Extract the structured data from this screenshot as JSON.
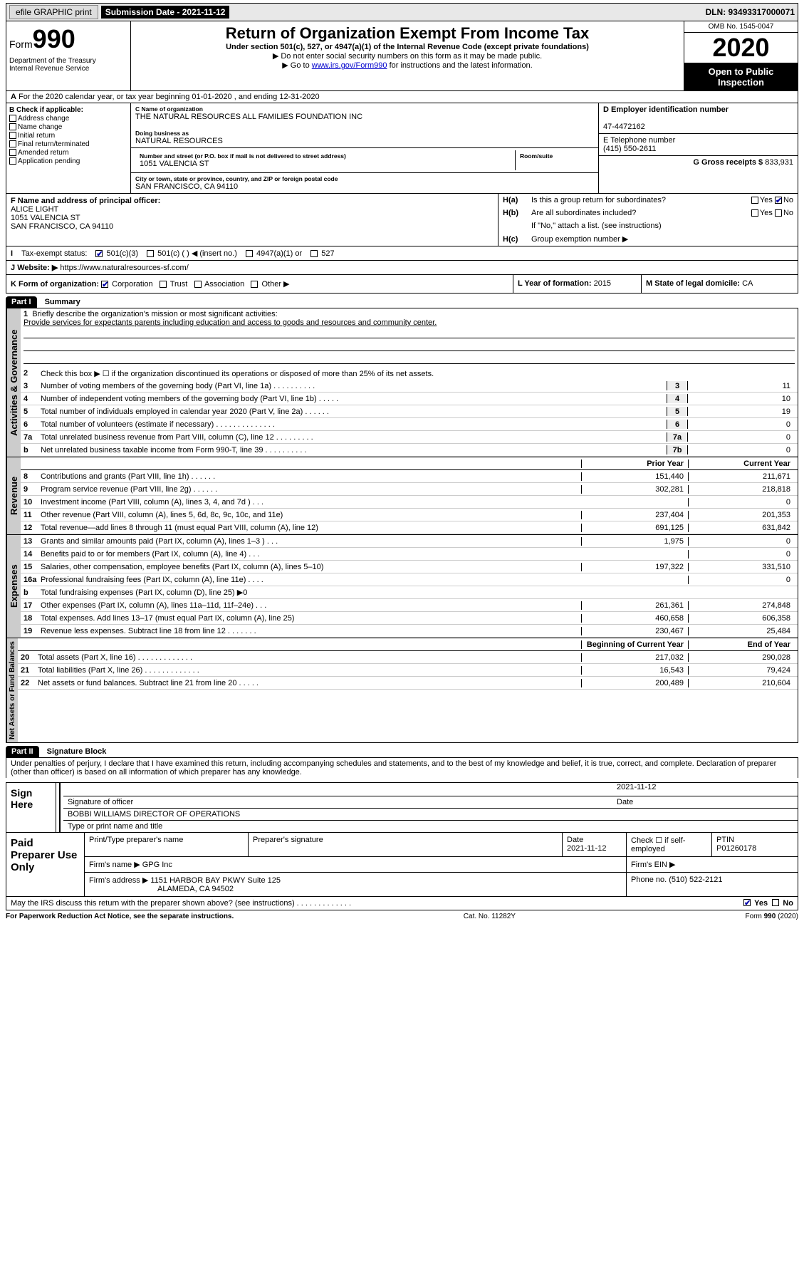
{
  "toolbar": {
    "efile_label": "efile GRAPHIC print",
    "submission_label": "Submission Date - 2021-11-12",
    "dln": "DLN: 93493317000071"
  },
  "header": {
    "form_label": "Form",
    "form_number": "990",
    "dept": "Department of the Treasury\nInternal Revenue Service",
    "title": "Return of Organization Exempt From Income Tax",
    "subtitle": "Under section 501(c), 527, or 4947(a)(1) of the Internal Revenue Code (except private foundations)",
    "instruct1": "▶ Do not enter social security numbers on this form as it may be made public.",
    "instruct2_a": "▶ Go to ",
    "instruct2_link": "www.irs.gov/Form990",
    "instruct2_b": " for instructions and the latest information.",
    "omb": "OMB No. 1545-0047",
    "year": "2020",
    "inspection": "Open to Public Inspection"
  },
  "row_a": "For the 2020 calendar year, or tax year beginning 01-01-2020   , and ending 12-31-2020",
  "block_b": {
    "heading": "B Check if applicable:",
    "items": [
      "Address change",
      "Name change",
      "Initial return",
      "Final return/terminated",
      "Amended return",
      "Application pending"
    ]
  },
  "block_c": {
    "name_label": "C Name of organization",
    "name": "THE NATURAL RESOURCES ALL FAMILIES FOUNDATION INC",
    "dba_label": "Doing business as",
    "dba": "NATURAL RESOURCES",
    "street_label": "Number and street (or P.O. box if mail is not delivered to street address)",
    "room_label": "Room/suite",
    "street": "1051 VALENCIA ST",
    "city_label": "City or town, state or province, country, and ZIP or foreign postal code",
    "city": "SAN FRANCISCO, CA  94110"
  },
  "block_d": {
    "label": "D Employer identification number",
    "value": "47-4472162"
  },
  "block_e": {
    "label": "E Telephone number",
    "value": "(415) 550-2611"
  },
  "block_g": {
    "label": "G Gross receipts $",
    "value": "833,931"
  },
  "block_f": {
    "label": "F  Name and address of principal officer:",
    "name": "ALICE LIGHT",
    "street": "1051 VALENCIA ST",
    "city": "SAN FRANCISCO, CA  94110"
  },
  "block_h": {
    "ha_label": "H(a)",
    "ha_text": "Is this a group return for subordinates?",
    "hb_label": "H(b)",
    "hb_text": "Are all subordinates included?",
    "instruct": "If \"No,\" attach a list. (see instructions)",
    "hc_label": "H(c)",
    "hc_text": "Group exemption number ▶",
    "yes": "Yes",
    "no": "No"
  },
  "tax_status": {
    "label": "Tax-exempt status:",
    "c3": "501(c)(3)",
    "c_other": "501(c) (   ) ◀ (insert no.)",
    "sec4947": "4947(a)(1) or",
    "sec527": "527"
  },
  "block_j": {
    "label": "J",
    "website_label": "Website: ▶",
    "website": "https://www.naturalresources-sf.com/"
  },
  "block_k": {
    "label": "K Form of organization:",
    "corp": "Corporation",
    "trust": "Trust",
    "assoc": "Association",
    "other": "Other ▶"
  },
  "block_l": {
    "label": "L Year of formation:",
    "value": "2015"
  },
  "block_m": {
    "label": "M State of legal domicile:",
    "value": "CA"
  },
  "part1": {
    "header": "Part I",
    "title": "Summary",
    "side_gov": "Activities & Governance",
    "side_rev": "Revenue",
    "side_exp": "Expenses",
    "side_net": "Net Assets or Fund Balances",
    "line1_label": "Briefly describe the organization's mission or most significant activities:",
    "line1_text": "Provide services for expectants parents including education and access to goods and resources and community center.",
    "line2": "Check this box ▶ ☐  if the organization discontinued its operations or disposed of more than 25% of its net assets.",
    "lines_gov": [
      {
        "n": "3",
        "d": "Number of voting members of the governing body (Part VI, line 1a)   .   .   .   .   .   .   .   .   .   .",
        "c": "3",
        "v": "11"
      },
      {
        "n": "4",
        "d": "Number of independent voting members of the governing body (Part VI, line 1b)   .   .   .   .   .",
        "c": "4",
        "v": "10"
      },
      {
        "n": "5",
        "d": "Total number of individuals employed in calendar year 2020 (Part V, line 2a)   .   .   .   .   .   .",
        "c": "5",
        "v": "19"
      },
      {
        "n": "6",
        "d": "Total number of volunteers (estimate if necessary)   .   .   .   .   .   .   .   .   .   .   .   .   .   .",
        "c": "6",
        "v": "0"
      },
      {
        "n": "7a",
        "d": "Total unrelated business revenue from Part VIII, column (C), line 12   .   .   .   .   .   .   .   .   .",
        "c": "7a",
        "v": "0"
      },
      {
        "n": "b",
        "d": "Net unrelated business taxable income from Form 990-T, line 39   .   .   .   .   .   .   .   .   .   .",
        "c": "7b",
        "v": "0"
      }
    ],
    "col_prior": "Prior Year",
    "col_current": "Current Year",
    "lines_rev": [
      {
        "n": "8",
        "d": "Contributions and grants (Part VIII, line 1h)   .   .   .   .   .   .",
        "p": "151,440",
        "c": "211,671"
      },
      {
        "n": "9",
        "d": "Program service revenue (Part VIII, line 2g)   .   .   .   .   .   .",
        "p": "302,281",
        "c": "218,818"
      },
      {
        "n": "10",
        "d": "Investment income (Part VIII, column (A), lines 3, 4, and 7d )   .   .   .",
        "p": "",
        "c": "0"
      },
      {
        "n": "11",
        "d": "Other revenue (Part VIII, column (A), lines 5, 6d, 8c, 9c, 10c, and 11e)",
        "p": "237,404",
        "c": "201,353"
      },
      {
        "n": "12",
        "d": "Total revenue—add lines 8 through 11 (must equal Part VIII, column (A), line 12)",
        "p": "691,125",
        "c": "631,842"
      }
    ],
    "lines_exp": [
      {
        "n": "13",
        "d": "Grants and similar amounts paid (Part IX, column (A), lines 1–3 )   .   .   .",
        "p": "1,975",
        "c": "0"
      },
      {
        "n": "14",
        "d": "Benefits paid to or for members (Part IX, column (A), line 4)   .   .   .",
        "p": "",
        "c": "0"
      },
      {
        "n": "15",
        "d": "Salaries, other compensation, employee benefits (Part IX, column (A), lines 5–10)",
        "p": "197,322",
        "c": "331,510"
      },
      {
        "n": "16a",
        "d": "Professional fundraising fees (Part IX, column (A), line 11e)   .   .   .   .",
        "p": "",
        "c": "0"
      },
      {
        "n": "b",
        "d": "Total fundraising expenses (Part IX, column (D), line 25) ▶0",
        "p": "",
        "c": "",
        "gray": true
      },
      {
        "n": "17",
        "d": "Other expenses (Part IX, column (A), lines 11a–11d, 11f–24e)   .   .   .",
        "p": "261,361",
        "c": "274,848"
      },
      {
        "n": "18",
        "d": "Total expenses. Add lines 13–17 (must equal Part IX, column (A), line 25)",
        "p": "460,658",
        "c": "606,358"
      },
      {
        "n": "19",
        "d": "Revenue less expenses. Subtract line 18 from line 12 .   .   .   .   .   .   .",
        "p": "230,467",
        "c": "25,484"
      }
    ],
    "col_begin": "Beginning of Current Year",
    "col_end": "End of Year",
    "lines_net": [
      {
        "n": "20",
        "d": "Total assets (Part X, line 16)   .   .   .   .   .   .   .   .   .   .   .   .   .",
        "p": "217,032",
        "c": "290,028"
      },
      {
        "n": "21",
        "d": "Total liabilities (Part X, line 26)   .   .   .   .   .   .   .   .   .   .   .   .   .",
        "p": "16,543",
        "c": "79,424"
      },
      {
        "n": "22",
        "d": "Net assets or fund balances. Subtract line 21 from line 20 .   .   .   .   .",
        "p": "200,489",
        "c": "210,604"
      }
    ]
  },
  "part2": {
    "header": "Part II",
    "title": "Signature Block",
    "declaration": "Under penalties of perjury, I declare that I have examined this return, including accompanying schedules and statements, and to the best of my knowledge and belief, it is true, correct, and complete. Declaration of preparer (other than officer) is based on all information of which preparer has any knowledge."
  },
  "sign": {
    "left": "Sign Here",
    "sig_officer": "Signature of officer",
    "date_label": "Date",
    "date": "2021-11-12",
    "name": "BOBBI WILLIAMS  DIRECTOR OF OPERATIONS",
    "type_label": "Type or print name and title"
  },
  "paid": {
    "left": "Paid Preparer Use Only",
    "print_label": "Print/Type preparer's name",
    "sig_label": "Preparer's signature",
    "date_label": "Date",
    "date": "2021-11-12",
    "check_label": "Check ☐  if self-employed",
    "ptin_label": "PTIN",
    "ptin": "P01260178",
    "firm_name_label": "Firm's name   ▶",
    "firm_name": "GPG Inc",
    "firm_ein_label": "Firm's EIN ▶",
    "firm_addr_label": "Firm's address ▶",
    "firm_addr1": "1151 HARBOR BAY PKWY Suite 125",
    "firm_addr2": "ALAMEDA, CA  94502",
    "phone_label": "Phone no.",
    "phone": "(510) 522-2121"
  },
  "discuss": {
    "text": "May the IRS discuss this return with the preparer shown above? (see instructions)   .   .   .   .   .   .   .   .   .   .   .   .   .",
    "yes": "Yes",
    "no": "No"
  },
  "footer": {
    "left": "For Paperwork Reduction Act Notice, see the separate instructions.",
    "mid": "Cat. No. 11282Y",
    "right": "Form 990 (2020)"
  },
  "colors": {
    "link": "#0000cc",
    "bg_gray": "#e8e8e8",
    "bg_black": "#000000",
    "side_gray": "#cccccc"
  }
}
